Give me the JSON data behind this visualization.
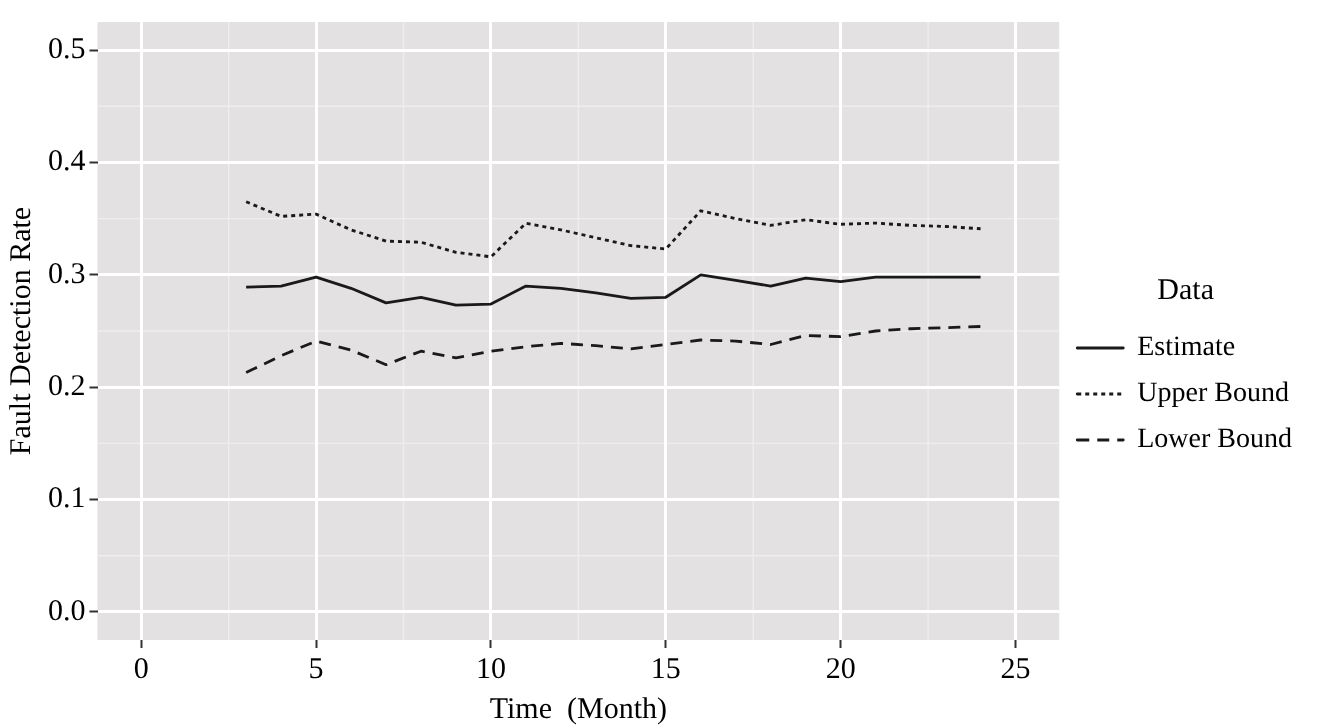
{
  "chart_data": {
    "type": "line",
    "xlabel": "Time  (Month)",
    "ylabel": "Fault Detection Rate",
    "legend_title": "Data",
    "legend": "right",
    "grid": true,
    "marker": "none",
    "x": [
      3,
      4,
      5,
      6,
      7,
      8,
      9,
      10,
      11,
      12,
      13,
      14,
      15,
      16,
      17,
      18,
      19,
      20,
      21,
      22,
      23,
      24
    ],
    "series": [
      {
        "name": "Estimate",
        "color": "#1a1a1a",
        "line_style": "solid",
        "values": [
          0.289,
          0.29,
          0.298,
          0.288,
          0.275,
          0.28,
          0.273,
          0.274,
          0.29,
          0.288,
          0.284,
          0.279,
          0.28,
          0.3,
          0.295,
          0.29,
          0.297,
          0.294,
          0.298,
          0.298,
          0.298,
          0.298
        ]
      },
      {
        "name": "Upper Bound",
        "color": "#1a1a1a",
        "line_style": "dotted",
        "values": [
          0.365,
          0.352,
          0.354,
          0.34,
          0.33,
          0.329,
          0.32,
          0.316,
          0.346,
          0.34,
          0.333,
          0.326,
          0.323,
          0.357,
          0.35,
          0.344,
          0.349,
          0.345,
          0.346,
          0.344,
          0.343,
          0.341
        ]
      },
      {
        "name": "Lower Bound",
        "color": "#1a1a1a",
        "line_style": "dashed",
        "values": [
          0.213,
          0.228,
          0.241,
          0.233,
          0.22,
          0.232,
          0.226,
          0.232,
          0.236,
          0.239,
          0.237,
          0.234,
          0.238,
          0.242,
          0.241,
          0.238,
          0.246,
          0.245,
          0.25,
          0.252,
          0.253,
          0.254
        ]
      }
    ],
    "xlim": [
      -1.25,
      26.25
    ],
    "xticks": [
      0,
      5,
      10,
      15,
      20,
      25
    ],
    "ylim": [
      -0.025,
      0.525
    ],
    "yticks": [
      {
        "value": 0,
        "label": "0.0"
      },
      {
        "value": 0.1,
        "label": "0.1"
      },
      {
        "value": 0.2,
        "label": "0.2"
      },
      {
        "value": 0.3,
        "label": "0.3"
      },
      {
        "value": 0.4,
        "label": "0.4"
      },
      {
        "value": 0.5,
        "label": "0.5"
      }
    ]
  }
}
